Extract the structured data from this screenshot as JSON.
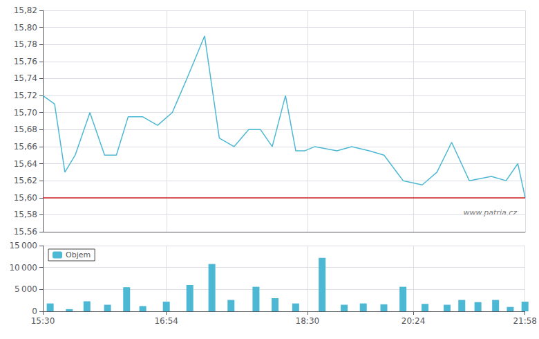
{
  "chart_data": [
    {
      "type": "line",
      "x": [
        0,
        8,
        15,
        22,
        32,
        42,
        50,
        58,
        68,
        78,
        88,
        98,
        110,
        120,
        130,
        140,
        148,
        156,
        165,
        172,
        178,
        185,
        200,
        210,
        222,
        232,
        245,
        258,
        268,
        278,
        290,
        305,
        315,
        323,
        328
      ],
      "values": [
        15.72,
        15.71,
        15.63,
        15.65,
        15.7,
        15.65,
        15.65,
        15.695,
        15.695,
        15.685,
        15.7,
        15.74,
        15.79,
        15.67,
        15.66,
        15.68,
        15.68,
        15.66,
        15.72,
        15.655,
        15.655,
        15.66,
        15.655,
        15.66,
        15.655,
        15.65,
        15.62,
        15.615,
        15.63,
        15.665,
        15.62,
        15.625,
        15.62,
        15.64,
        15.6
      ],
      "color": "#4db8d4",
      "hline": {
        "value": 15.6,
        "color": "#cc2222"
      },
      "annotations": [
        {
          "text": "www.patria.cz"
        }
      ],
      "xlim": [
        0,
        328
      ],
      "xticks": [
        0,
        84,
        180,
        252,
        328
      ],
      "ylim": [
        15.56,
        15.82
      ],
      "yticks": [
        {
          "value": 15.56,
          "label": "15,56"
        },
        {
          "value": 15.58,
          "label": "15,58"
        },
        {
          "value": 15.6,
          "label": "15,60"
        },
        {
          "value": 15.62,
          "label": "15,62"
        },
        {
          "value": 15.64,
          "label": "15,64"
        },
        {
          "value": 15.66,
          "label": "15,66"
        },
        {
          "value": 15.68,
          "label": "15,68"
        },
        {
          "value": 15.7,
          "label": "15,70"
        },
        {
          "value": 15.72,
          "label": "15,72"
        },
        {
          "value": 15.74,
          "label": "15,74"
        },
        {
          "value": 15.76,
          "label": "15,76"
        },
        {
          "value": 15.78,
          "label": "15,78"
        },
        {
          "value": 15.8,
          "label": "15,80"
        },
        {
          "value": 15.82,
          "label": "15,82"
        }
      ],
      "grid": true,
      "tick_labels": "y"
    },
    {
      "type": "bar",
      "x": [
        5,
        18,
        30,
        44,
        57,
        68,
        84,
        100,
        115,
        128,
        145,
        158,
        172,
        190,
        205,
        218,
        232,
        245,
        260,
        275,
        285,
        296,
        308,
        318,
        328
      ],
      "series": [
        {
          "name": "Objem",
          "color": "#4db8d4",
          "values": [
            1800,
            500,
            2300,
            1500,
            5500,
            1200,
            2200,
            6000,
            10800,
            2600,
            5600,
            3000,
            1800,
            12200,
            1500,
            1800,
            1600,
            5600,
            1700,
            1500,
            2600,
            2100,
            2600,
            1000,
            2200
          ]
        }
      ],
      "xlim": [
        0,
        328
      ],
      "xticks": [
        {
          "value": 0,
          "label": "15:30"
        },
        {
          "value": 84,
          "label": "16:54"
        },
        {
          "value": 180,
          "label": "18:30"
        },
        {
          "value": 252,
          "label": "20:24"
        },
        {
          "value": 328,
          "label": "21:58"
        }
      ],
      "ylim": [
        0,
        15000
      ],
      "yticks": [
        0,
        {
          "value": 5000,
          "label": "5 000"
        },
        {
          "value": 10000,
          "label": "10 000"
        },
        {
          "value": 15000,
          "label": "15 000"
        }
      ],
      "grid": true,
      "legend": "upper left"
    }
  ]
}
